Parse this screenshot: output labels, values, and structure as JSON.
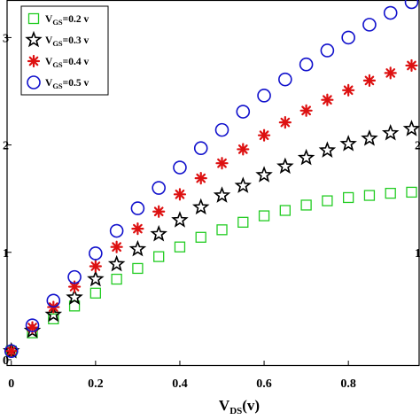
{
  "chart_data": {
    "type": "scatter",
    "xlabel": {
      "main": "V",
      "sub": "DS",
      "suffix": "(v)"
    },
    "ylabel": "",
    "xlim": [
      -0.01,
      0.97
    ],
    "ylim": [
      -0.05,
      3.35
    ],
    "x_ticks": [
      0,
      0.2,
      0.4,
      0.6,
      0.8
    ],
    "x_tick_labels": [
      "0",
      "0.2",
      "0.4",
      "0.6",
      "0.8"
    ],
    "y_ticks": [
      0,
      1,
      2,
      3
    ],
    "y_tick_labels": [
      "0",
      "1",
      "2",
      "3"
    ],
    "right_tick_labels": [
      "1",
      "2"
    ],
    "legend_position": "top-left",
    "x": [
      0,
      0.05,
      0.1,
      0.15,
      0.2,
      0.25,
      0.3,
      0.35,
      0.4,
      0.45,
      0.5,
      0.55,
      0.6,
      0.65,
      0.7,
      0.75,
      0.8,
      0.85,
      0.9,
      0.95
    ],
    "series": [
      {
        "label_main": "V",
        "label_sub": "GS",
        "label_rest": "=0.2 v",
        "marker": "square",
        "color": "#22cc22",
        "values": [
          0.08,
          0.25,
          0.38,
          0.5,
          0.62,
          0.75,
          0.85,
          0.96,
          1.05,
          1.14,
          1.21,
          1.28,
          1.34,
          1.39,
          1.44,
          1.48,
          1.51,
          1.53,
          1.55,
          1.56
        ]
      },
      {
        "label_main": "V",
        "label_sub": "GS",
        "label_rest": "=0.3 v",
        "marker": "star",
        "color": "#000000",
        "values": [
          0.08,
          0.27,
          0.42,
          0.58,
          0.75,
          0.89,
          1.03,
          1.17,
          1.3,
          1.42,
          1.53,
          1.62,
          1.72,
          1.8,
          1.88,
          1.95,
          2.01,
          2.06,
          2.11,
          2.15
        ]
      },
      {
        "label_main": "V",
        "label_sub": "GS",
        "label_rest": "=0.4 v",
        "marker": "asterisk",
        "color": "#dd1111",
        "values": [
          0.08,
          0.3,
          0.49,
          0.68,
          0.87,
          1.05,
          1.22,
          1.38,
          1.54,
          1.69,
          1.83,
          1.96,
          2.09,
          2.21,
          2.32,
          2.42,
          2.51,
          2.6,
          2.67,
          2.74
        ]
      },
      {
        "label_main": "V",
        "label_sub": "GS",
        "label_rest": "=0.5 v",
        "marker": "circle",
        "color": "#1111cc",
        "values": [
          0.08,
          0.32,
          0.55,
          0.77,
          0.99,
          1.2,
          1.41,
          1.6,
          1.79,
          1.97,
          2.14,
          2.31,
          2.46,
          2.61,
          2.75,
          2.88,
          3.0,
          3.12,
          3.23,
          3.33
        ]
      }
    ]
  }
}
